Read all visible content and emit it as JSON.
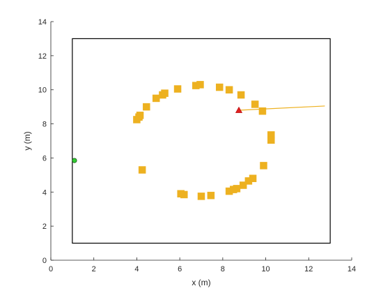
{
  "chart_data": {
    "type": "scatter",
    "title": "",
    "xlabel": "x (m)",
    "ylabel": "y (m)",
    "xlim": [
      0,
      14
    ],
    "ylim": [
      0,
      14
    ],
    "xticks": [
      "0",
      "2",
      "4",
      "6",
      "8",
      "10",
      "12",
      "14"
    ],
    "yticks": [
      "0",
      "2",
      "4",
      "6",
      "8",
      "10",
      "12",
      "14"
    ],
    "grid": false,
    "boundary": {
      "x": [
        1,
        13
      ],
      "y": [
        1,
        13
      ],
      "color": "#000000"
    },
    "landmarks": {
      "marker": "square",
      "color": "#EDB120",
      "points": [
        [
          4.0,
          8.25
        ],
        [
          4.1,
          8.4
        ],
        [
          4.15,
          8.5
        ],
        [
          4.45,
          9.0
        ],
        [
          4.9,
          9.5
        ],
        [
          5.2,
          9.7
        ],
        [
          5.3,
          9.8
        ],
        [
          5.9,
          10.05
        ],
        [
          6.75,
          10.25
        ],
        [
          6.95,
          10.3
        ],
        [
          7.85,
          10.15
        ],
        [
          8.3,
          10.0
        ],
        [
          8.85,
          9.7
        ],
        [
          9.5,
          9.15
        ],
        [
          9.85,
          8.75
        ],
        [
          10.25,
          7.35
        ],
        [
          10.25,
          7.05
        ],
        [
          9.9,
          5.55
        ],
        [
          9.4,
          4.8
        ],
        [
          9.2,
          4.65
        ],
        [
          8.95,
          4.4
        ],
        [
          8.65,
          4.2
        ],
        [
          8.5,
          4.15
        ],
        [
          8.3,
          4.05
        ],
        [
          7.45,
          3.8
        ],
        [
          7.0,
          3.75
        ],
        [
          6.2,
          3.85
        ],
        [
          6.05,
          3.9
        ],
        [
          4.25,
          5.3
        ]
      ]
    },
    "robot": {
      "marker": "triangle",
      "color": "#E02020",
      "x": 8.75,
      "y": 8.8
    },
    "heading_line": {
      "color": "#EDB120",
      "x": [
        8.75,
        12.75
      ],
      "y": [
        8.8,
        9.05
      ]
    },
    "start_point": {
      "marker": "circle",
      "color": "#33CC33",
      "x": 1.1,
      "y": 5.85
    }
  }
}
